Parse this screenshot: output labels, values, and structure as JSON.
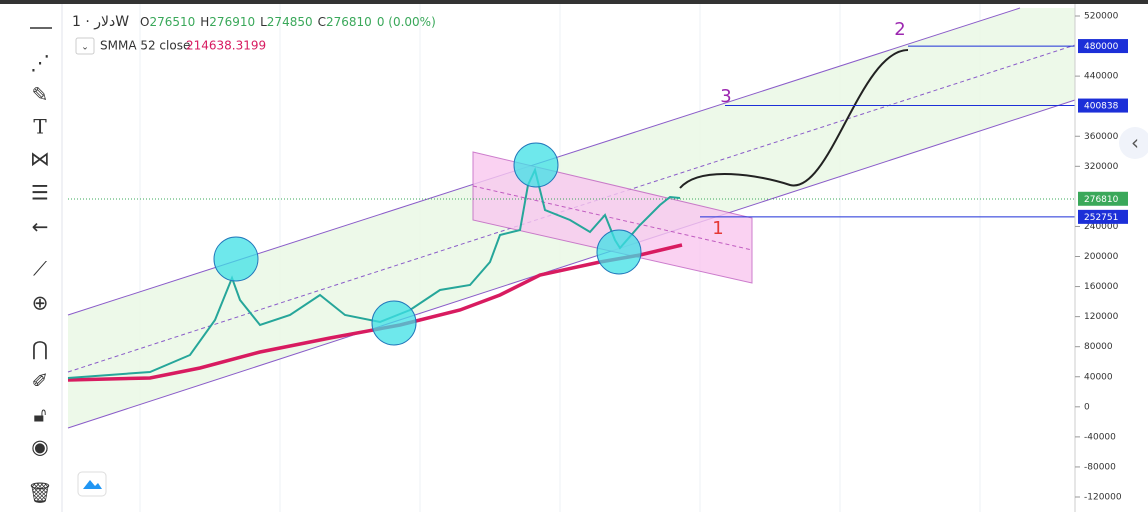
{
  "header": {
    "symbol": "دلار",
    "interval": "1W",
    "ohlc": [
      {
        "label": "O",
        "value": "276510"
      },
      {
        "label": "H",
        "value": "276910"
      },
      {
        "label": "L",
        "value": "274850"
      },
      {
        "label": "C",
        "value": "276810"
      }
    ],
    "change": "0 (0.00%)"
  },
  "indicator": {
    "name": "SMMA 52 close",
    "value": "214638.3199"
  },
  "price_axis": {
    "ticks": [
      520000,
      440000,
      360000,
      320000,
      240000,
      200000,
      160000,
      120000,
      80000,
      40000,
      0,
      -40000,
      -80000,
      -120000
    ],
    "labels": [
      {
        "value": 480000,
        "color": "#1c2fd8"
      },
      {
        "value": 400838,
        "color": "#1c2fd8"
      },
      {
        "value": 276810,
        "color": "#3aa85a"
      },
      {
        "value": 252751,
        "color": "#1c2fd8"
      }
    ]
  },
  "annotations": [
    {
      "text": "2",
      "color": "#9c27b0"
    },
    {
      "text": "3",
      "color": "#9c27b0"
    },
    {
      "text": "1",
      "color": "#e53935"
    }
  ]
}
